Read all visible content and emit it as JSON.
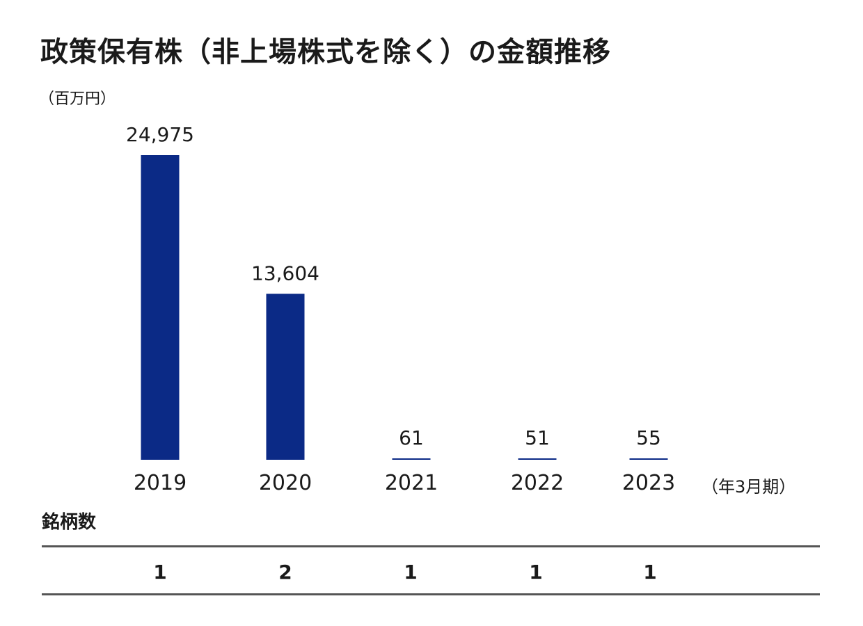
{
  "title": "政策保有株（非上場株式を除く）の金額推移",
  "unit_label": "（百万円）",
  "period_label": "（年3月期）",
  "count_label": "銘柄数",
  "colors": {
    "bar": "#0b2a86",
    "text": "#1a1a1a",
    "rule": "#555555"
  },
  "chart_data": {
    "type": "bar",
    "title": "政策保有株（非上場株式を除く）の金額推移",
    "xlabel": "（年3月期）",
    "ylabel": "（百万円）",
    "categories": [
      "2019",
      "2020",
      "2021",
      "2022",
      "2023"
    ],
    "values": [
      24975,
      13604,
      61,
      51,
      55
    ],
    "value_labels": [
      "24,975",
      "13,604",
      "61",
      "51",
      "55"
    ],
    "ylim": [
      0,
      24975
    ],
    "grid": false,
    "legend": "none"
  },
  "counts": [
    "1",
    "2",
    "1",
    "1",
    "1"
  ]
}
